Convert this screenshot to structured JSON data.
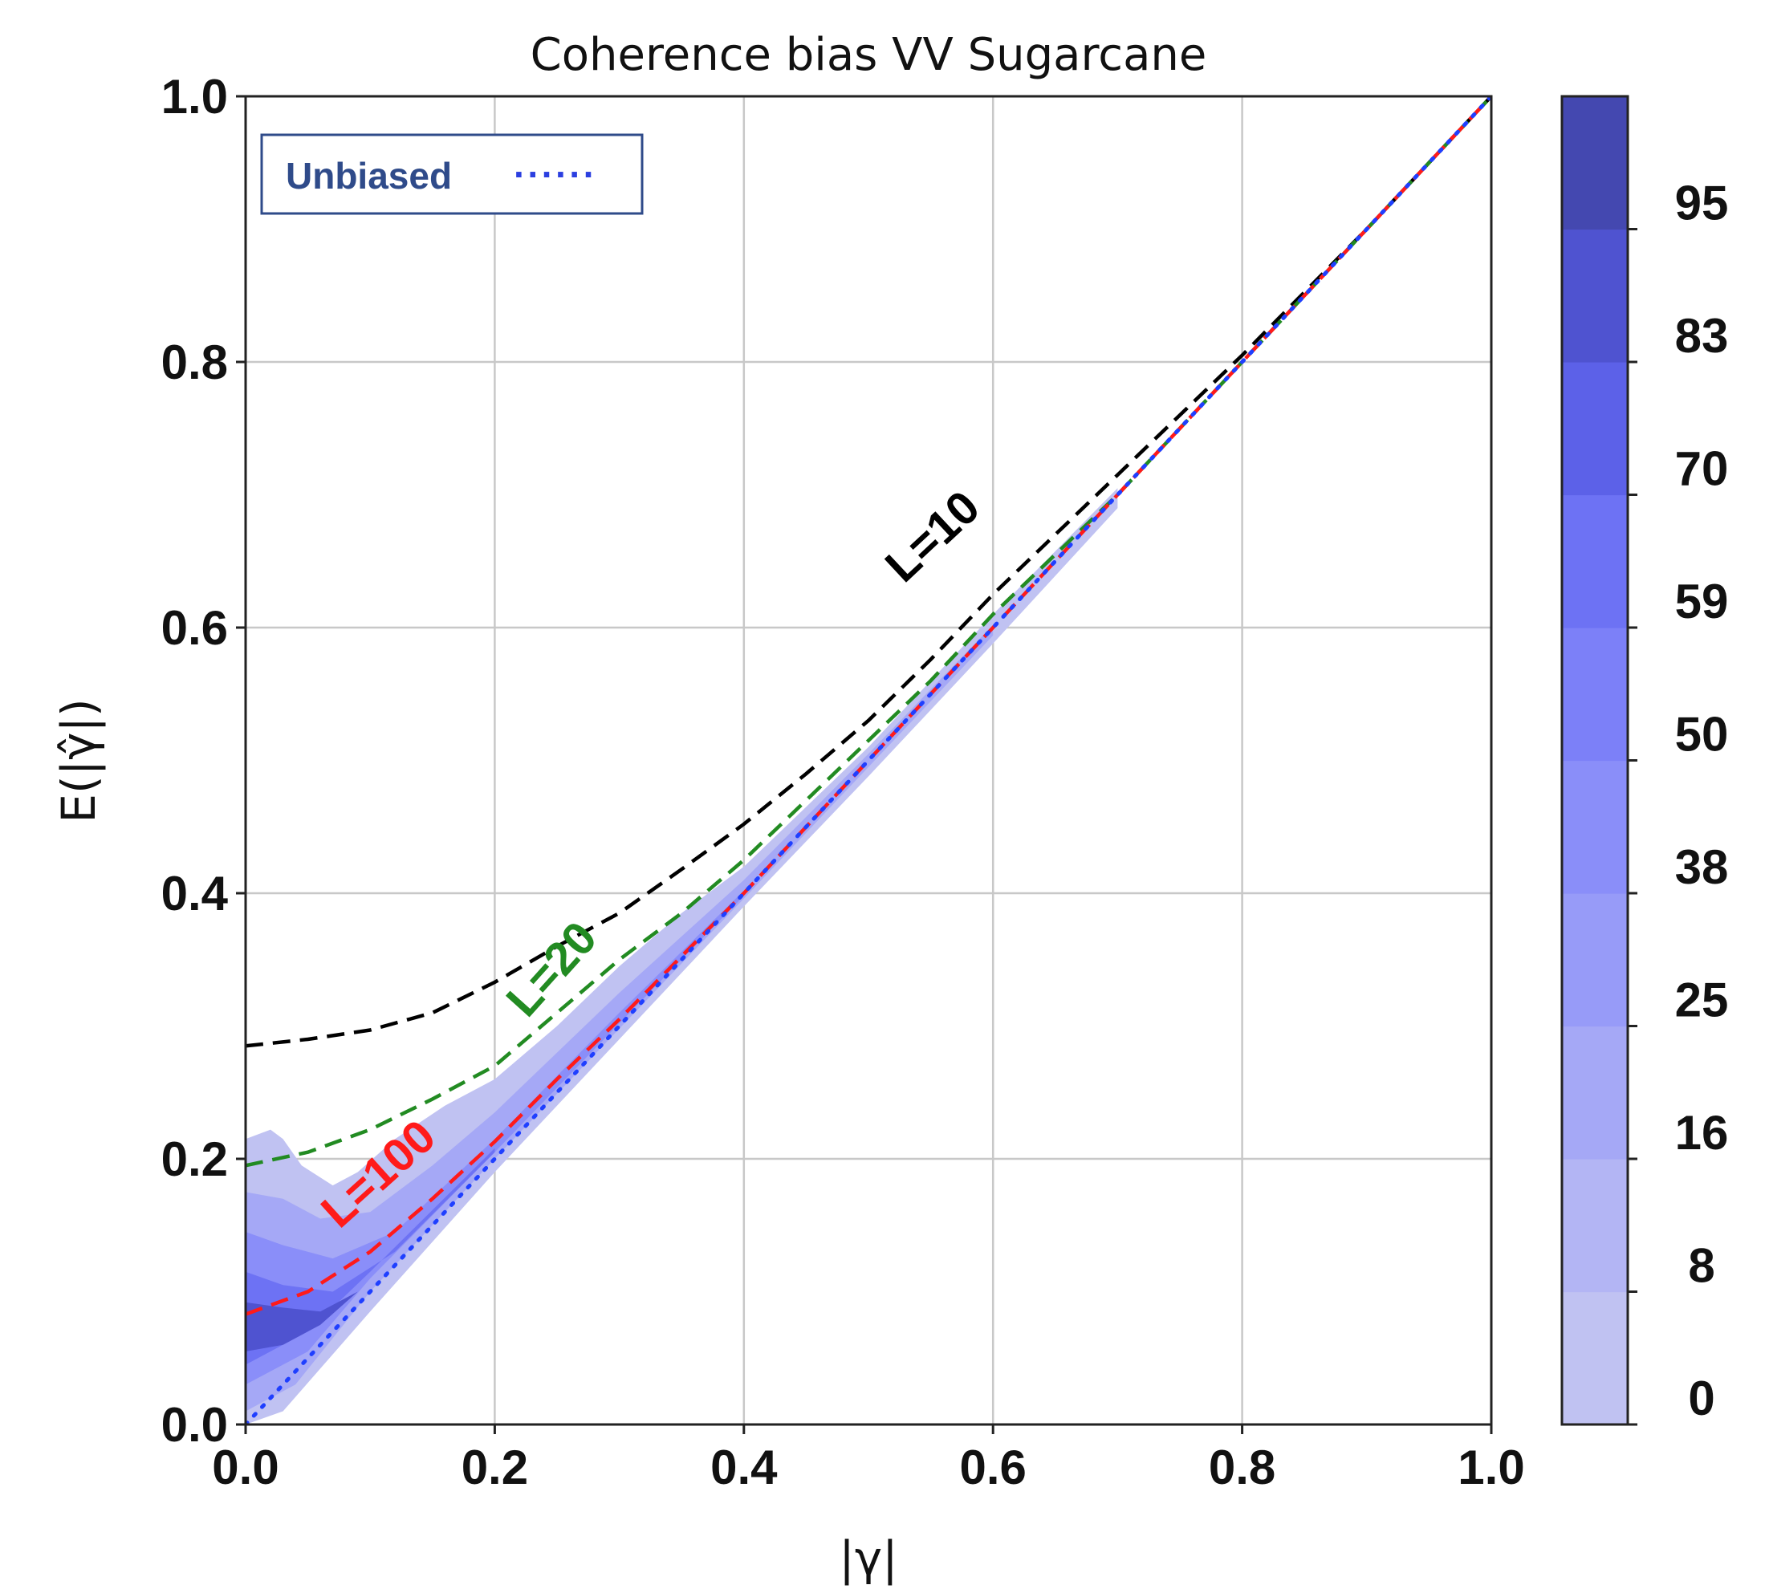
{
  "chart_data": {
    "type": "line",
    "title": "Coherence bias VV Sugarcane",
    "xlabel": "|γ|",
    "ylabel": "E(|γ̂|)",
    "xlim": [
      0,
      1
    ],
    "ylim": [
      0,
      1
    ],
    "xticks": [
      "0.0",
      "0.2",
      "0.4",
      "0.6",
      "0.8",
      "1.0"
    ],
    "yticks": [
      "0.0",
      "0.2",
      "0.4",
      "0.6",
      "0.8",
      "1.0"
    ],
    "grid": true,
    "legend": {
      "position": "top-left",
      "label": "Unbiased",
      "marker": "······"
    },
    "series": [
      {
        "name": "Unbiased",
        "color": "#1f3fff",
        "style": "dotted",
        "x": [
          0,
          1
        ],
        "y": [
          0,
          1
        ]
      },
      {
        "name": "L=10",
        "color": "#000000",
        "style": "dashed",
        "x": [
          0.0,
          0.05,
          0.1,
          0.15,
          0.2,
          0.25,
          0.3,
          0.35,
          0.4,
          0.45,
          0.5,
          0.55,
          0.6,
          0.65,
          0.7,
          0.75,
          0.8,
          0.9,
          1.0
        ],
        "y": [
          0.285,
          0.29,
          0.297,
          0.31,
          0.333,
          0.36,
          0.385,
          0.418,
          0.452,
          0.49,
          0.53,
          0.576,
          0.625,
          0.67,
          0.715,
          0.76,
          0.805,
          0.9,
          1.0
        ]
      },
      {
        "name": "L=20",
        "color": "#228b22",
        "style": "dashed",
        "x": [
          0.0,
          0.05,
          0.1,
          0.15,
          0.2,
          0.25,
          0.3,
          0.35,
          0.4,
          0.45,
          0.5,
          0.55,
          0.6,
          0.65,
          0.7,
          0.8,
          0.9,
          1.0
        ],
        "y": [
          0.195,
          0.205,
          0.222,
          0.245,
          0.27,
          0.31,
          0.35,
          0.385,
          0.425,
          0.47,
          0.515,
          0.56,
          0.61,
          0.655,
          0.7,
          0.8,
          0.9,
          1.0
        ]
      },
      {
        "name": "L=100",
        "color": "#ff1a1a",
        "style": "dashed",
        "x": [
          0.0,
          0.05,
          0.1,
          0.15,
          0.2,
          0.25,
          0.3,
          0.4,
          0.5,
          0.6,
          0.7,
          0.8,
          0.9,
          1.0
        ],
        "y": [
          0.083,
          0.1,
          0.13,
          0.17,
          0.213,
          0.26,
          0.305,
          0.4,
          0.5,
          0.6,
          0.7,
          0.8,
          0.9,
          1.0
        ]
      }
    ],
    "curve_labels": [
      {
        "text": "L=10",
        "series": "L=10",
        "x": 0.56,
        "y": 0.66,
        "angle": 43
      },
      {
        "text": "L=20",
        "series": "L=20",
        "x": 0.255,
        "y": 0.335,
        "angle": 48
      },
      {
        "text": "L=100",
        "series": "L=100",
        "x": 0.115,
        "y": 0.18,
        "angle": 42
      }
    ],
    "density": {
      "description": "filled density contours around the curves",
      "levels": [
        0,
        8,
        16,
        25,
        38,
        50,
        59,
        70,
        83,
        95
      ]
    },
    "colorbar": {
      "ticks": [
        "0",
        "8",
        "16",
        "25",
        "38",
        "50",
        "59",
        "70",
        "83",
        "95"
      ],
      "colors": [
        "#c0c2f2",
        "#b3b5f4",
        "#a5a8f6",
        "#979bf8",
        "#8a8ef9",
        "#7c80f8",
        "#6d72f4",
        "#5c61e8",
        "#4f53d0",
        "#4448b0"
      ]
    }
  }
}
